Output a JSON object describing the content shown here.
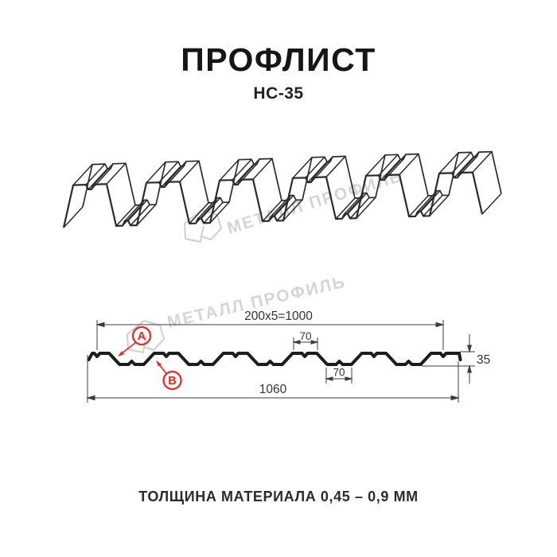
{
  "header": {
    "title": "ПРОФЛИСТ",
    "model": "НС-35"
  },
  "watermark": {
    "brand": "МЕТАЛЛ ПРОФИЛЬ"
  },
  "drawing": {
    "dimensions": {
      "working_width": "200x5=1000",
      "crest_width": "70",
      "valley_width": "70",
      "overall_width": "1060",
      "height": "35"
    },
    "callouts": {
      "a": "A",
      "b": "B"
    }
  },
  "footer": {
    "thickness_note": "ТОЛЩИНА МАТЕРИАЛА 0,45 – 0,9 ММ"
  },
  "colors": {
    "line": "#2b2b2b",
    "profile": "#1d1d1d",
    "dim": "#3c3c3c",
    "accent_red": "#e5271d",
    "watermark": "#d5d5d5",
    "logo": "#cfcfcf"
  }
}
